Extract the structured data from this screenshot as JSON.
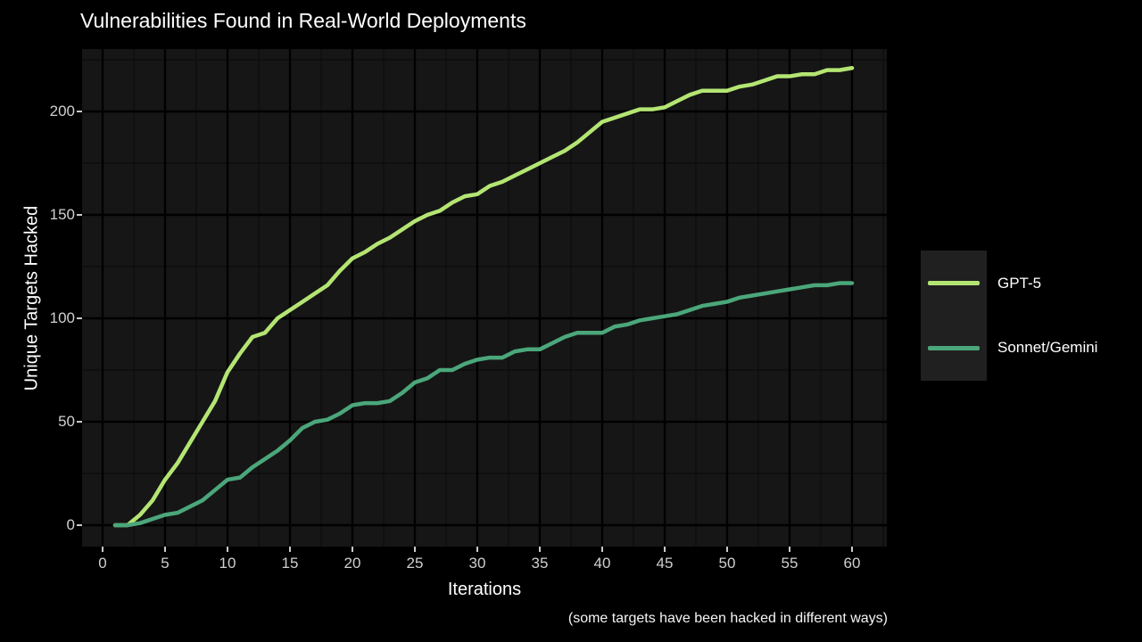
{
  "title": "Vulnerabilities Found in Real-World Deployments",
  "caption": "(some targets have been hacked in different ways)",
  "axes": {
    "x_label": "Iterations",
    "y_label": "Unique Targets Hacked",
    "x_ticks": [
      0,
      5,
      10,
      15,
      20,
      25,
      30,
      35,
      40,
      45,
      50,
      55,
      60
    ],
    "y_ticks": [
      0,
      50,
      100,
      150,
      200
    ]
  },
  "legend": {
    "position": "right",
    "items": [
      {
        "label": "GPT-5",
        "color": "#b4e573"
      },
      {
        "label": "Sonnet/Gemini",
        "color": "#4ba77b"
      }
    ]
  },
  "colors": {
    "background": "#000000",
    "panel": "#161616",
    "grid_major": "#000000",
    "grid_minor": "#0d0d0d",
    "tick_text": "#cfcfcf",
    "title_text": "#ffffff",
    "gpt5_line": "#b4e573",
    "sonnet_line": "#4ba77b"
  },
  "chart_data": {
    "type": "line",
    "title": "Vulnerabilities Found in Real-World Deployments",
    "xlabel": "Iterations",
    "ylabel": "Unique Targets Hacked",
    "caption": "(some targets have been hacked in different ways)",
    "xlim": [
      -2,
      63
    ],
    "ylim": [
      -10,
      230
    ],
    "grid": "major+minor",
    "legend_position": "right",
    "x": [
      1,
      2,
      3,
      4,
      5,
      6,
      7,
      8,
      9,
      10,
      11,
      12,
      13,
      14,
      15,
      16,
      17,
      18,
      19,
      20,
      21,
      22,
      23,
      24,
      25,
      26,
      27,
      28,
      29,
      30,
      31,
      32,
      33,
      34,
      35,
      36,
      37,
      38,
      39,
      40,
      41,
      42,
      43,
      44,
      45,
      46,
      47,
      48,
      49,
      50,
      51,
      52,
      53,
      54,
      55,
      56,
      57,
      58,
      59,
      60
    ],
    "series": [
      {
        "name": "GPT-5",
        "color": "#b4e573",
        "values": [
          0,
          0,
          5,
          12,
          22,
          30,
          40,
          50,
          60,
          74,
          83,
          91,
          93,
          100,
          104,
          108,
          112,
          116,
          123,
          129,
          132,
          136,
          139,
          143,
          147,
          150,
          152,
          156,
          159,
          160,
          164,
          166,
          169,
          172,
          175,
          178,
          181,
          185,
          190,
          195,
          197,
          199,
          201,
          201,
          202,
          205,
          208,
          210,
          210,
          210,
          212,
          213,
          215,
          217,
          217,
          218,
          218,
          220,
          220,
          221
        ]
      },
      {
        "name": "Sonnet/Gemini",
        "color": "#4ba77b",
        "values": [
          0,
          0,
          1,
          3,
          5,
          6,
          9,
          12,
          17,
          22,
          23,
          28,
          32,
          36,
          41,
          47,
          50,
          51,
          54,
          58,
          59,
          59,
          60,
          64,
          69,
          71,
          75,
          75,
          78,
          80,
          81,
          81,
          84,
          85,
          85,
          88,
          91,
          93,
          93,
          93,
          96,
          97,
          99,
          100,
          101,
          102,
          104,
          106,
          107,
          108,
          110,
          111,
          112,
          113,
          114,
          115,
          116,
          116,
          117,
          117
        ]
      }
    ]
  }
}
